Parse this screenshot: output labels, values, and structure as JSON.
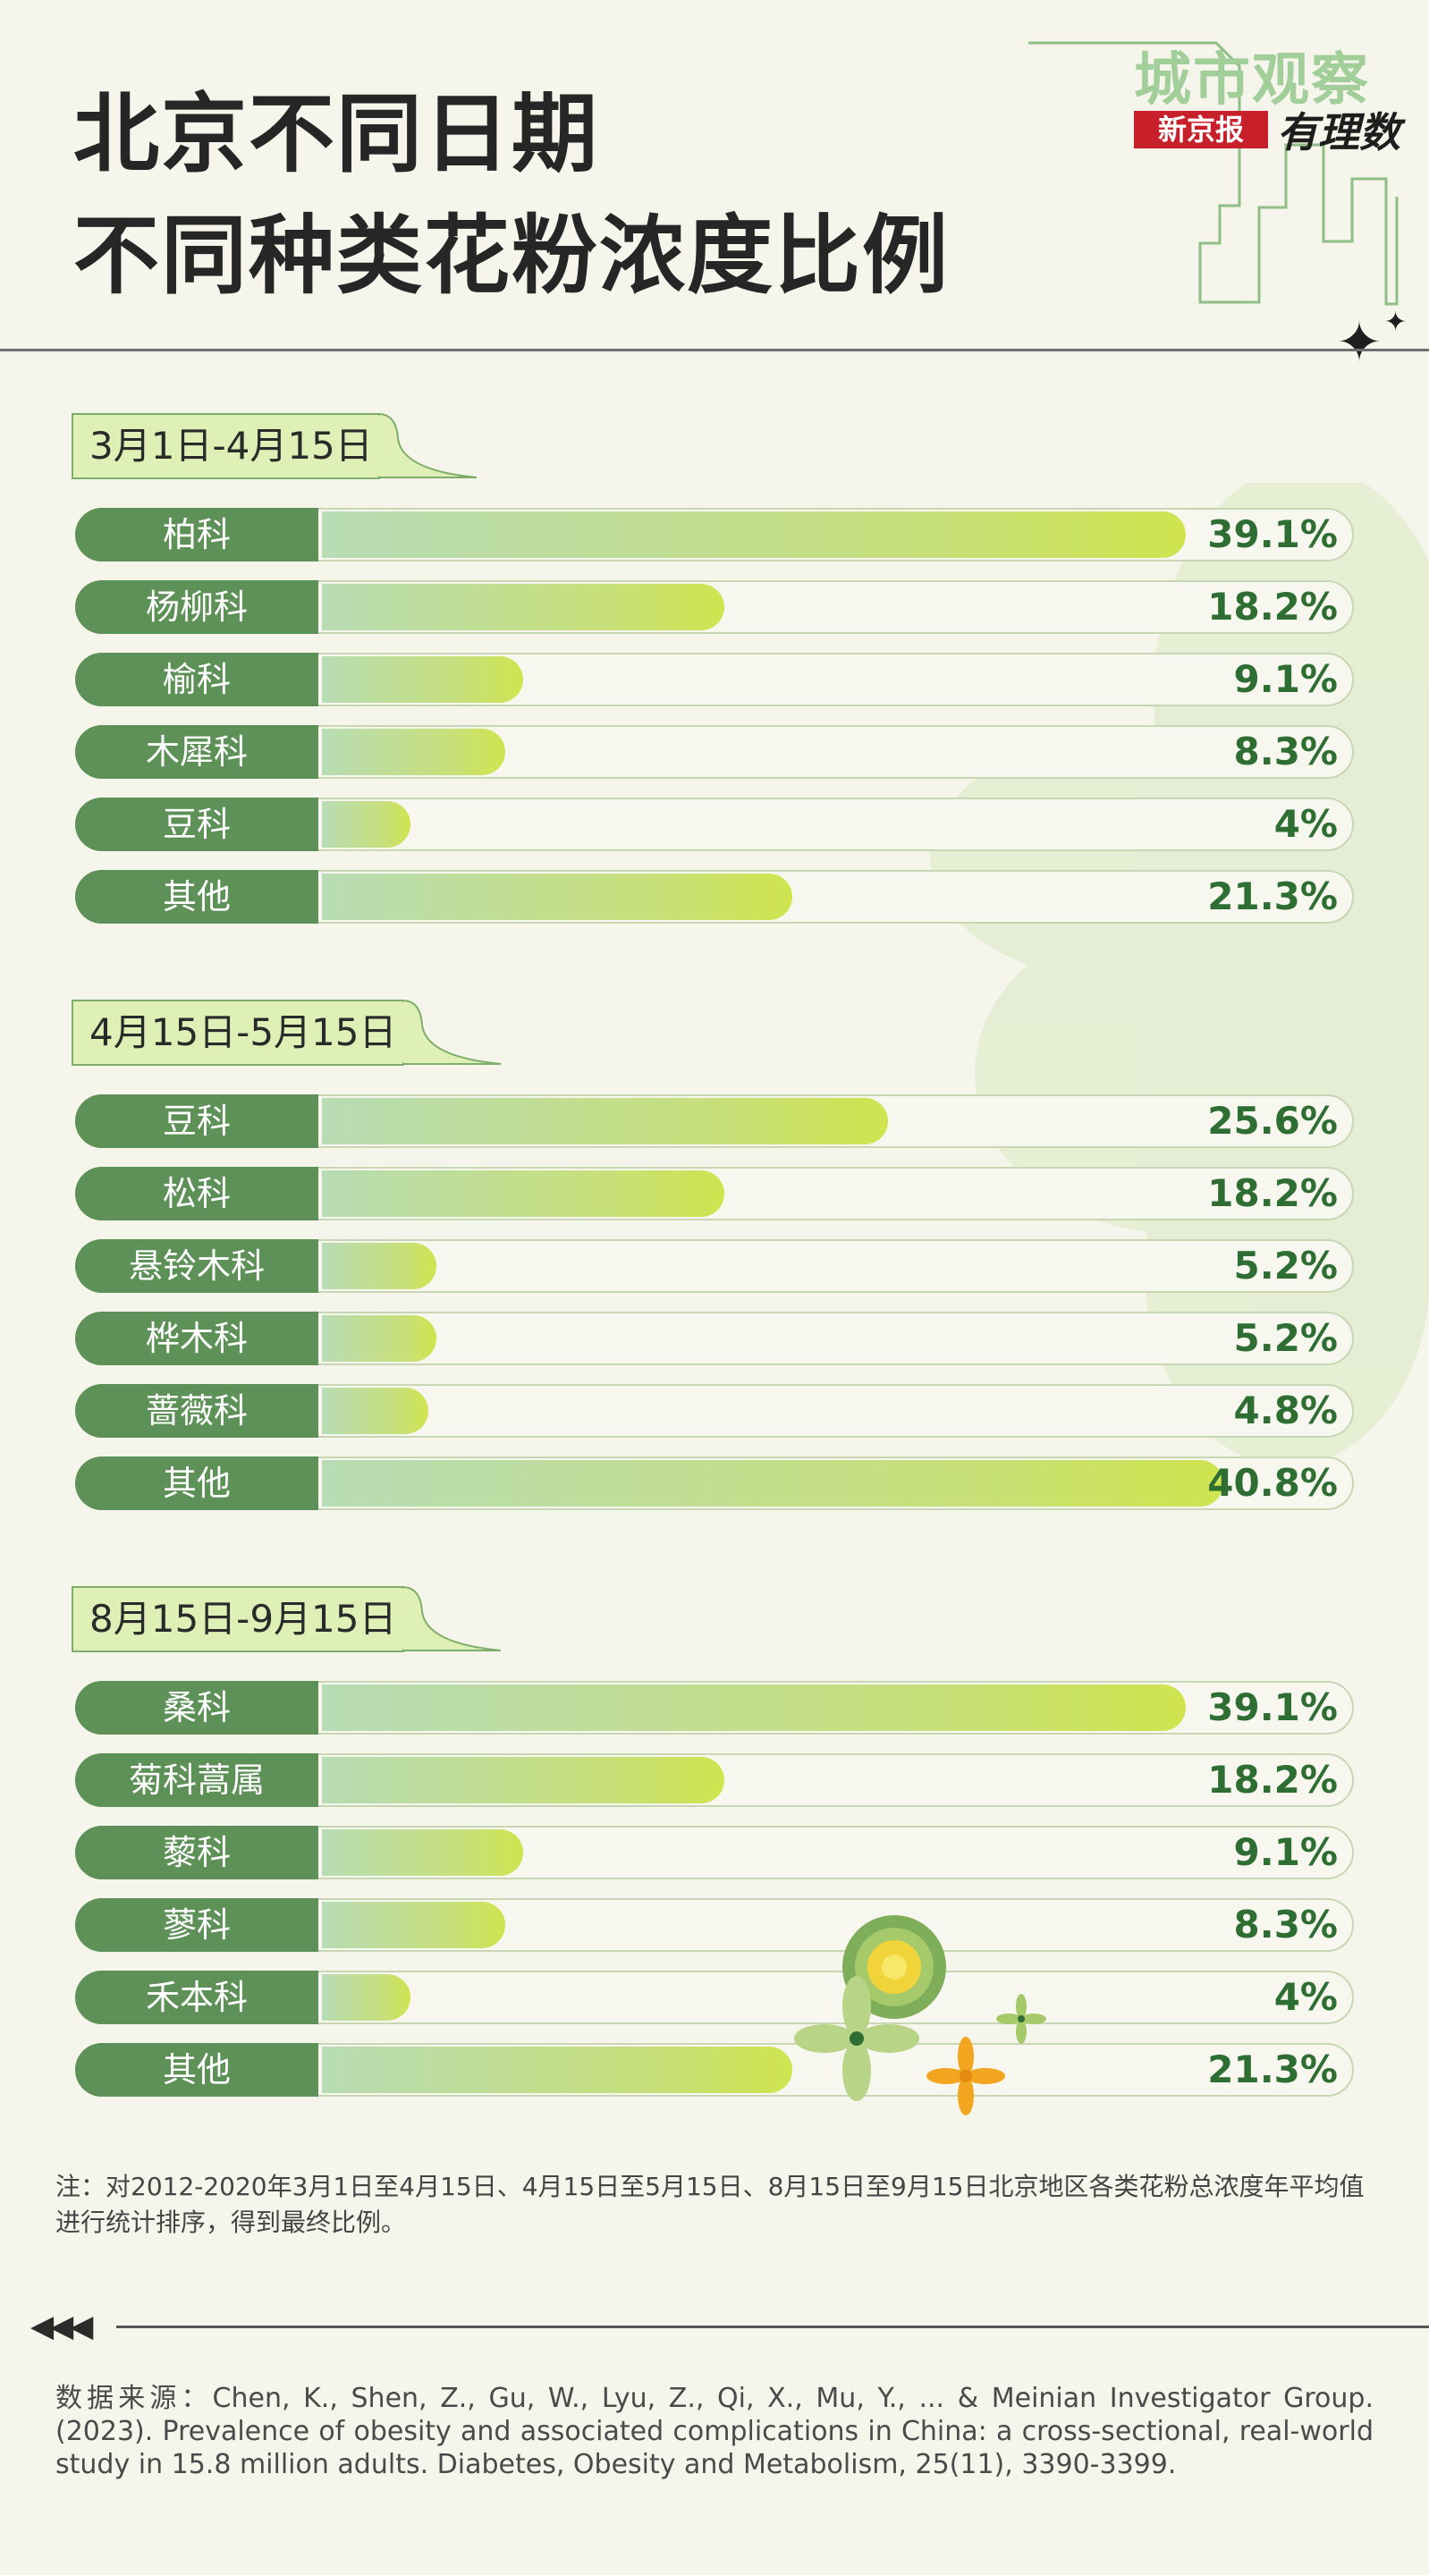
{
  "title_lines": [
    "北京不同日期",
    "不同种类花粉浓度比例"
  ],
  "brand": {
    "top": "城市观察",
    "red_badge": "新京报",
    "script": "有理数"
  },
  "colors": {
    "label_green": "#5e9158",
    "value_green": "#2e6e33",
    "bar_start": "#b8dcb4",
    "bar_end": "#cfe44e",
    "tab_fill": "#dff0b6"
  },
  "chart_data": [
    {
      "type": "bar",
      "orientation": "horizontal",
      "title": "3月1日-4月15日",
      "categories": [
        "柏科",
        "杨柳科",
        "榆科",
        "木犀科",
        "豆科",
        "其他"
      ],
      "values": [
        39.1,
        18.2,
        9.1,
        8.3,
        4,
        21.3
      ],
      "value_labels": [
        "39.1%",
        "18.2%",
        "9.1%",
        "8.3%",
        "4%",
        "21.3%"
      ],
      "xlim": [
        0,
        45
      ],
      "unit": "%"
    },
    {
      "type": "bar",
      "orientation": "horizontal",
      "title": "4月15日-5月15日",
      "categories": [
        "豆科",
        "松科",
        "悬铃木科",
        "桦木科",
        "蔷薇科",
        "其他"
      ],
      "values": [
        25.6,
        18.2,
        5.2,
        5.2,
        4.8,
        40.8
      ],
      "value_labels": [
        "25.6%",
        "18.2%",
        "5.2%",
        "5.2%",
        "4.8%",
        "40.8%"
      ],
      "xlim": [
        0,
        45
      ],
      "unit": "%"
    },
    {
      "type": "bar",
      "orientation": "horizontal",
      "title": "8月15日-9月15日",
      "categories": [
        "桑科",
        "菊科蒿属",
        "藜科",
        "蓼科",
        "禾本科",
        "其他"
      ],
      "values": [
        39.1,
        18.2,
        9.1,
        8.3,
        4,
        21.3
      ],
      "value_labels": [
        "39.1%",
        "18.2%",
        "9.1%",
        "8.3%",
        "4%",
        "21.3%"
      ],
      "xlim": [
        0,
        45
      ],
      "unit": "%"
    }
  ],
  "note": "注：对2012-2020年3月1日至4月15日、4月15日至5月15日、8月15日至9月15日北京地区各类花粉总浓度年平均值进行统计排序，得到最终比例。",
  "source": "数据来源：Chen, K., Shen, Z., Gu, W., Lyu, Z., Qi, X., Mu, Y., ... & Meinian Investigator Group. (2023). Prevalence of obesity and associated complications in China: a cross‐sectional, real‐world study in 15.8 million adults.    Diabetes, Obesity and Metabolism,  25(11), 3390-3399.",
  "icons": [
    "sparkle-icon",
    "flower-icon",
    "arrows-left-icon"
  ]
}
